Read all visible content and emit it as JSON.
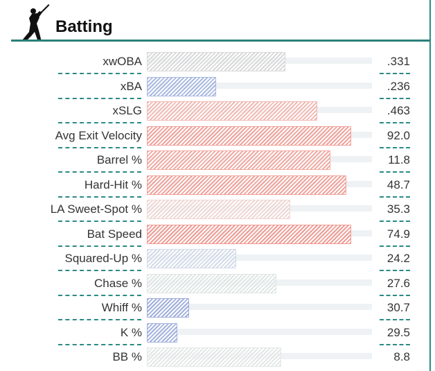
{
  "header": {
    "title": "Batting",
    "icon": "batter-silhouette-icon"
  },
  "colors": {
    "accent": "#2a8a84",
    "track": "#eef2f4"
  },
  "rows": [
    {
      "label": "xwOBA",
      "value": ".331",
      "fill": 0.61,
      "color": "#d9d9d9"
    },
    {
      "label": "xBA",
      "value": ".236",
      "fill": 0.3,
      "color": "#a9b9e0"
    },
    {
      "label": "xSLG",
      "value": ".463",
      "fill": 0.75,
      "color": "#f2b9b3"
    },
    {
      "label": "Avg Exit Velocity",
      "value": "92.0",
      "fill": 0.9,
      "color": "#f0a39b"
    },
    {
      "label": "Barrel %",
      "value": "11.8",
      "fill": 0.81,
      "color": "#f0aaa2"
    },
    {
      "label": "Hard-Hit %",
      "value": "48.7",
      "fill": 0.88,
      "color": "#f0a39b"
    },
    {
      "label": "LA Sweet-Spot %",
      "value": "35.3",
      "fill": 0.63,
      "color": "#eed7d4"
    },
    {
      "label": "Bat Speed",
      "value": "74.9",
      "fill": 0.9,
      "color": "#ef9c94"
    },
    {
      "label": "Squared-Up %",
      "value": "24.2",
      "fill": 0.39,
      "color": "#d3dbe8"
    },
    {
      "label": "Chase %",
      "value": "27.6",
      "fill": 0.57,
      "color": "#dfe6e4"
    },
    {
      "label": "Whiff %",
      "value": "30.7",
      "fill": 0.18,
      "color": "#9fafdb"
    },
    {
      "label": "K %",
      "value": "29.5",
      "fill": 0.13,
      "color": "#a4b3de"
    },
    {
      "label": "BB %",
      "value": "8.8",
      "fill": 0.59,
      "color": "#e3e8e6"
    }
  ]
}
